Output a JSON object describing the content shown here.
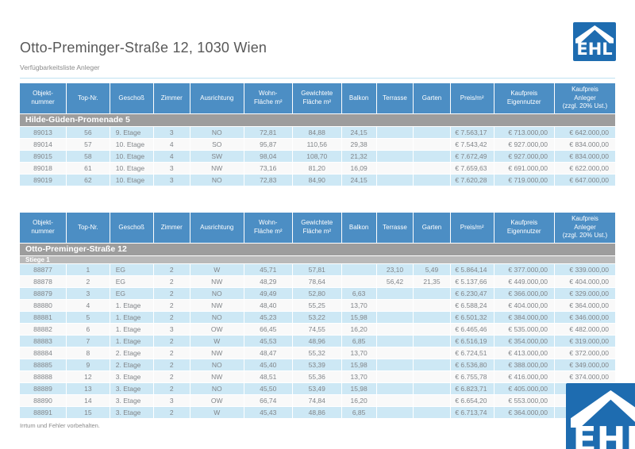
{
  "page": {
    "title": "Otto-Preminger-Straße 12, 1030 Wien",
    "subtitle": "Verfügbarkeitsliste Anleger",
    "footer": "Irrtum und Fehler vorbehalten.",
    "logo_text": "EHL"
  },
  "colors": {
    "header_blue": "#4c8ec4",
    "row_blue": "#cde8f5",
    "row_white": "#f9f9f9",
    "section_gray": "#9d9d9d",
    "subsection_gray": "#b9b9b9",
    "logo_blue": "#1e6cb0",
    "text_gray": "#808488"
  },
  "columns": [
    "Objekt-\nnummer",
    "Top-Nr.",
    "Geschoß",
    "Zimmer",
    "Ausrichtung",
    "Wohn-\nFläche m²",
    "Gewichtete\nFläche m²",
    "Balkon",
    "Terrasse",
    "Garten",
    "Preis/m²",
    "Kaufpreis\nEigennutzer",
    "Kaufpreis\nAnleger\n(zzgl. 20% Ust.)"
  ],
  "tables": [
    {
      "section": "Hilde-Güden-Promenade 5",
      "subsection": null,
      "rows": [
        [
          "89013",
          "56",
          "9. Etage",
          "3",
          "NO",
          "72,81",
          "84,88",
          "24,15",
          "",
          "",
          "€ 7.563,17",
          "€ 713.000,00",
          "€ 642.000,00"
        ],
        [
          "89014",
          "57",
          "10. Etage",
          "4",
          "SO",
          "95,87",
          "110,56",
          "29,38",
          "",
          "",
          "€ 7.543,42",
          "€ 927.000,00",
          "€ 834.000,00"
        ],
        [
          "89015",
          "58",
          "10. Etage",
          "4",
          "SW",
          "98,04",
          "108,70",
          "21,32",
          "",
          "",
          "€ 7.672,49",
          "€ 927.000,00",
          "€ 834.000,00"
        ],
        [
          "89018",
          "61",
          "10. Etage",
          "3",
          "NW",
          "73,16",
          "81,20",
          "16,09",
          "",
          "",
          "€ 7.659,63",
          "€ 691.000,00",
          "€ 622.000,00"
        ],
        [
          "89019",
          "62",
          "10. Etage",
          "3",
          "NO",
          "72,83",
          "84,90",
          "24,15",
          "",
          "",
          "€ 7.620,28",
          "€ 719.000,00",
          "€ 647.000,00"
        ]
      ]
    },
    {
      "section": "Otto-Preminger-Straße 12",
      "subsection": "Stiege 1",
      "rows": [
        [
          "88877",
          "1",
          "EG",
          "2",
          "W",
          "45,71",
          "57,81",
          "",
          "23,10",
          "5,49",
          "€ 5.864,14",
          "€ 377.000,00",
          "€ 339.000,00"
        ],
        [
          "88878",
          "2",
          "EG",
          "2",
          "NW",
          "48,29",
          "78,64",
          "",
          "56,42",
          "21,35",
          "€ 5.137,66",
          "€ 449.000,00",
          "€ 404.000,00"
        ],
        [
          "88879",
          "3",
          "EG",
          "2",
          "NO",
          "49,49",
          "52,80",
          "6,63",
          "",
          "",
          "€ 6.230,47",
          "€ 366.000,00",
          "€ 329.000,00"
        ],
        [
          "88880",
          "4",
          "1. Etage",
          "2",
          "NW",
          "48,40",
          "55,25",
          "13,70",
          "",
          "",
          "€ 6.588,24",
          "€ 404.000,00",
          "€ 364.000,00"
        ],
        [
          "88881",
          "5",
          "1. Etage",
          "2",
          "NO",
          "45,23",
          "53,22",
          "15,98",
          "",
          "",
          "€ 6.501,32",
          "€ 384.000,00",
          "€ 346.000,00"
        ],
        [
          "88882",
          "6",
          "1. Etage",
          "3",
          "OW",
          "66,45",
          "74,55",
          "16,20",
          "",
          "",
          "€ 6.465,46",
          "€ 535.000,00",
          "€ 482.000,00"
        ],
        [
          "88883",
          "7",
          "1. Etage",
          "2",
          "W",
          "45,53",
          "48,96",
          "6,85",
          "",
          "",
          "€ 6.516,19",
          "€ 354.000,00",
          "€ 319.000,00"
        ],
        [
          "88884",
          "8",
          "2. Etage",
          "2",
          "NW",
          "48,47",
          "55,32",
          "13,70",
          "",
          "",
          "€ 6.724,51",
          "€ 413.000,00",
          "€ 372.000,00"
        ],
        [
          "88885",
          "9",
          "2. Etage",
          "2",
          "NO",
          "45,40",
          "53,39",
          "15,98",
          "",
          "",
          "€ 6.536,80",
          "€ 388.000,00",
          "€ 349.000,00"
        ],
        [
          "88888",
          "12",
          "3. Etage",
          "2",
          "NW",
          "48,51",
          "55,36",
          "13,70",
          "",
          "",
          "€ 6.755,78",
          "€ 416.000,00",
          "€ 374.000,00"
        ],
        [
          "88889",
          "13",
          "3. Etage",
          "2",
          "NO",
          "45,50",
          "53,49",
          "15,98",
          "",
          "",
          "€ 6.823,71",
          "€ 405.000,00",
          "€"
        ],
        [
          "88890",
          "14",
          "3. Etage",
          "3",
          "OW",
          "66,74",
          "74,84",
          "16,20",
          "",
          "",
          "€ 6.654,20",
          "€ 553.000,00",
          "€"
        ],
        [
          "88891",
          "15",
          "3. Etage",
          "2",
          "W",
          "45,43",
          "48,86",
          "6,85",
          "",
          "",
          "€ 6.713,74",
          "€ 364.000,00",
          "€"
        ]
      ]
    }
  ]
}
